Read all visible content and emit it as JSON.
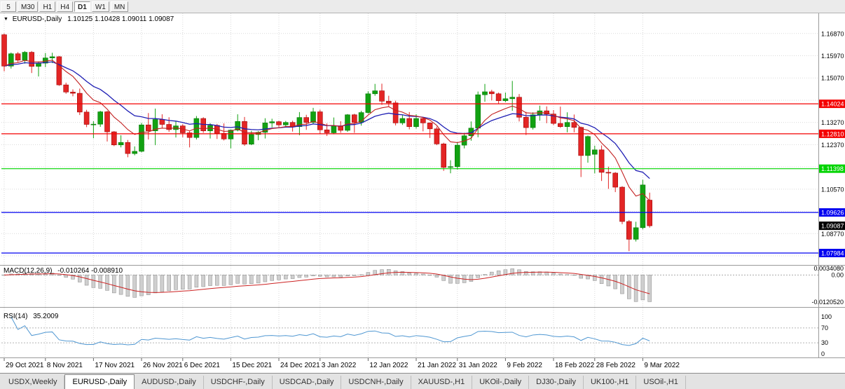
{
  "header": {
    "symbol": "EURUSD-,Daily",
    "ohlc": "1.10125 1.10428 1.09011 1.09087"
  },
  "toolbar": {
    "buttons": [
      {
        "label": "5",
        "active": false
      },
      {
        "label": "M30",
        "active": false
      },
      {
        "label": "H1",
        "active": false
      },
      {
        "label": "H4",
        "active": false
      },
      {
        "label": "D1",
        "active": true
      },
      {
        "label": "W1",
        "active": false
      },
      {
        "label": "MN",
        "active": false
      }
    ]
  },
  "tabs": {
    "items": [
      {
        "label": "USDX,Weekly",
        "active": false
      },
      {
        "label": "EURUSD-,Daily",
        "active": true
      },
      {
        "label": "AUDUSD-,Daily",
        "active": false
      },
      {
        "label": "USDCHF-,Daily",
        "active": false
      },
      {
        "label": "USDCAD-,Daily",
        "active": false
      },
      {
        "label": "USDCNH-,Daily",
        "active": false
      },
      {
        "label": "XAUUSD-,H1",
        "active": false
      },
      {
        "label": "UKOil-,Daily",
        "active": false
      },
      {
        "label": "DJ30-,Daily",
        "active": false
      },
      {
        "label": "UK100-,H1",
        "active": false
      },
      {
        "label": "USOil-,H1",
        "active": false
      }
    ]
  },
  "indicators": {
    "macd": {
      "label": "MACD(12,26,9)",
      "value_text": "-0.010264 -0.008910",
      "fast": 12,
      "slow": 26,
      "signal_period": 9,
      "axis": {
        "top": "0.0034080",
        "zero": "0.00",
        "bottom": "-0.0120520"
      },
      "scale": {
        "max": 0.00341,
        "min": -0.01206
      }
    },
    "rsi": {
      "label": "RSI(14)",
      "value_text": "35.2009",
      "period": 14,
      "axis_labels": [
        "100",
        "70",
        "30",
        "0"
      ],
      "dotted_levels": [
        70,
        30
      ]
    }
  },
  "chart_data": {
    "type": "candlestick",
    "symbol": "EURUSD-",
    "timeframe": "Daily",
    "price_range": {
      "top": 1.1763,
      "bottom": 1.0753
    },
    "grid_prices": [
      1.1687,
      1.1597,
      1.1507,
      1.1417,
      1.1327,
      1.1237,
      1.1147,
      1.1057,
      1.0967,
      1.0877,
      1.0787
    ],
    "axis_labels": [
      {
        "text": "1.16870",
        "price": 1.1687
      },
      {
        "text": "1.15970",
        "price": 1.1597
      },
      {
        "text": "1.15070",
        "price": 1.1507
      },
      {
        "text": "1.13270",
        "price": 1.1327
      },
      {
        "text": "1.12370",
        "price": 1.1237
      },
      {
        "text": "1.10570",
        "price": 1.1057
      },
      {
        "text": "1.08770",
        "price": 1.0877
      }
    ],
    "hlines": [
      {
        "price": 1.14024,
        "label": "1.14024",
        "color": "#f40000",
        "text_color": "#ffffff"
      },
      {
        "price": 1.1281,
        "label": "1.12810",
        "color": "#f40000",
        "text_color": "#ffffff"
      },
      {
        "price": 1.11398,
        "label": "1.11398",
        "color": "#00d400",
        "text_color": "#ffffff"
      },
      {
        "price": 1.09626,
        "label": "1.09626",
        "color": "#0202f0",
        "text_color": "#ffffff"
      },
      {
        "price": 1.07984,
        "label": "1.07984",
        "color": "#0202f0",
        "text_color": "#ffffff"
      }
    ],
    "current_price": {
      "price": 1.09087,
      "label": "1.09087",
      "bg": "#000000",
      "text_color": "#ffffff"
    },
    "x_ticks": [
      {
        "label": "29 Oct 2021",
        "i": 0
      },
      {
        "label": "8 Nov 2021",
        "i": 6
      },
      {
        "label": "17 Nov 2021",
        "i": 13
      },
      {
        "label": "26 Nov 2021",
        "i": 20
      },
      {
        "label": "6 Dec 2021",
        "i": 26
      },
      {
        "label": "15 Dec 2021",
        "i": 33
      },
      {
        "label": "24 Dec 2021",
        "i": 40
      },
      {
        "label": "3 Jan 2022",
        "i": 46
      },
      {
        "label": "12 Jan 2022",
        "i": 53
      },
      {
        "label": "21 Jan 2022",
        "i": 60
      },
      {
        "label": "31 Jan 2022",
        "i": 66
      },
      {
        "label": "9 Feb 2022",
        "i": 73
      },
      {
        "label": "18 Feb 2022",
        "i": 80
      },
      {
        "label": "28 Feb 2022",
        "i": 86
      },
      {
        "label": "9 Mar 2022",
        "i": 93
      }
    ],
    "candles": [
      [
        1.1682,
        1.1687,
        1.1534,
        1.1555
      ],
      [
        1.1555,
        1.161,
        1.1545,
        1.1605
      ],
      [
        1.1605,
        1.1612,
        1.1571,
        1.1579
      ],
      [
        1.1579,
        1.1616,
        1.1565,
        1.1611
      ],
      [
        1.1611,
        1.1616,
        1.1527,
        1.1554
      ],
      [
        1.1554,
        1.1574,
        1.1513,
        1.1567
      ],
      [
        1.1567,
        1.1608,
        1.1551,
        1.1588
      ],
      [
        1.1588,
        1.1609,
        1.1567,
        1.1593
      ],
      [
        1.1593,
        1.1596,
        1.1475,
        1.1479
      ],
      [
        1.1479,
        1.1488,
        1.1443,
        1.145
      ],
      [
        1.145,
        1.1461,
        1.1433,
        1.1445
      ],
      [
        1.1445,
        1.1464,
        1.1357,
        1.1369
      ],
      [
        1.1369,
        1.1378,
        1.1308,
        1.1319
      ],
      [
        1.1319,
        1.1332,
        1.1263,
        1.132
      ],
      [
        1.132,
        1.1374,
        1.1309,
        1.137
      ],
      [
        1.137,
        1.1374,
        1.125,
        1.1289
      ],
      [
        1.1289,
        1.1292,
        1.1231,
        1.1236
      ],
      [
        1.1236,
        1.1275,
        1.1226,
        1.1246
      ],
      [
        1.1246,
        1.1256,
        1.1186,
        1.1201
      ],
      [
        1.1201,
        1.123,
        1.1194,
        1.121
      ],
      [
        1.121,
        1.1325,
        1.1206,
        1.1317
      ],
      [
        1.1317,
        1.1365,
        1.1258,
        1.1293
      ],
      [
        1.1293,
        1.1383,
        1.1235,
        1.1339
      ],
      [
        1.1339,
        1.136,
        1.1302,
        1.1319
      ],
      [
        1.1319,
        1.1348,
        1.1289,
        1.1298
      ],
      [
        1.1298,
        1.1334,
        1.1266,
        1.1313
      ],
      [
        1.1313,
        1.132,
        1.1267,
        1.1285
      ],
      [
        1.1285,
        1.1292,
        1.1226,
        1.1266
      ],
      [
        1.1266,
        1.1353,
        1.1258,
        1.1343
      ],
      [
        1.1343,
        1.1348,
        1.1285,
        1.1293
      ],
      [
        1.1293,
        1.1324,
        1.1262,
        1.1315
      ],
      [
        1.1315,
        1.1321,
        1.126,
        1.1283
      ],
      [
        1.1283,
        1.1323,
        1.1254,
        1.126
      ],
      [
        1.126,
        1.1298,
        1.1222,
        1.1296
      ],
      [
        1.1296,
        1.136,
        1.1291,
        1.1331
      ],
      [
        1.1331,
        1.1349,
        1.1232,
        1.1239
      ],
      [
        1.1239,
        1.1293,
        1.1235,
        1.1278
      ],
      [
        1.1278,
        1.1292,
        1.1255,
        1.1287
      ],
      [
        1.1287,
        1.1344,
        1.1262,
        1.1325
      ],
      [
        1.1325,
        1.1342,
        1.1307,
        1.133
      ],
      [
        1.133,
        1.1334,
        1.1308,
        1.1317
      ],
      [
        1.1317,
        1.1333,
        1.1306,
        1.1327
      ],
      [
        1.1327,
        1.1334,
        1.129,
        1.131
      ],
      [
        1.131,
        1.1369,
        1.1275,
        1.1347
      ],
      [
        1.1347,
        1.1358,
        1.1297,
        1.1327
      ],
      [
        1.1327,
        1.1386,
        1.1322,
        1.137
      ],
      [
        1.137,
        1.1379,
        1.1279,
        1.1297
      ],
      [
        1.1297,
        1.1323,
        1.1272,
        1.1285
      ],
      [
        1.1285,
        1.1347,
        1.1279,
        1.1313
      ],
      [
        1.1313,
        1.1332,
        1.1285,
        1.1295
      ],
      [
        1.1295,
        1.1361,
        1.1289,
        1.1358
      ],
      [
        1.1358,
        1.1362,
        1.1285,
        1.1327
      ],
      [
        1.1327,
        1.1374,
        1.1314,
        1.1367
      ],
      [
        1.1367,
        1.1453,
        1.1362,
        1.1443
      ],
      [
        1.1443,
        1.1483,
        1.1435,
        1.1455
      ],
      [
        1.1455,
        1.1484,
        1.1398,
        1.1413
      ],
      [
        1.1413,
        1.1435,
        1.1392,
        1.1406
      ],
      [
        1.1406,
        1.1415,
        1.1315,
        1.1325
      ],
      [
        1.1325,
        1.1357,
        1.1317,
        1.1343
      ],
      [
        1.1343,
        1.1369,
        1.1299,
        1.131
      ],
      [
        1.131,
        1.136,
        1.1302,
        1.1343
      ],
      [
        1.1343,
        1.1348,
        1.1291,
        1.1325
      ],
      [
        1.1325,
        1.1327,
        1.1264,
        1.1301
      ],
      [
        1.1301,
        1.131,
        1.1235,
        1.124
      ],
      [
        1.124,
        1.1245,
        1.1131,
        1.1145
      ],
      [
        1.1145,
        1.1174,
        1.1121,
        1.1148
      ],
      [
        1.1148,
        1.1248,
        1.1136,
        1.1235
      ],
      [
        1.1235,
        1.1285,
        1.1222,
        1.1273
      ],
      [
        1.1273,
        1.1331,
        1.1253,
        1.1304
      ],
      [
        1.1304,
        1.1452,
        1.1267,
        1.1439
      ],
      [
        1.1439,
        1.1483,
        1.1411,
        1.1451
      ],
      [
        1.1451,
        1.1459,
        1.1416,
        1.1443
      ],
      [
        1.1443,
        1.1448,
        1.1402,
        1.1415
      ],
      [
        1.1415,
        1.1448,
        1.1409,
        1.1423
      ],
      [
        1.1423,
        1.1495,
        1.1374,
        1.1429
      ],
      [
        1.1429,
        1.1442,
        1.1331,
        1.1348
      ],
      [
        1.1348,
        1.137,
        1.1276,
        1.1306
      ],
      [
        1.1306,
        1.1368,
        1.1298,
        1.1358
      ],
      [
        1.1358,
        1.1395,
        1.1334,
        1.1374
      ],
      [
        1.1374,
        1.1392,
        1.1324,
        1.1361
      ],
      [
        1.1361,
        1.1377,
        1.1316,
        1.1323
      ],
      [
        1.1323,
        1.1391,
        1.1305,
        1.131
      ],
      [
        1.131,
        1.1368,
        1.1287,
        1.1327
      ],
      [
        1.1327,
        1.1359,
        1.1287,
        1.1307
      ],
      [
        1.1307,
        1.131,
        1.1106,
        1.1193
      ],
      [
        1.1193,
        1.1274,
        1.1164,
        1.127
      ],
      [
        1.1198,
        1.1233,
        1.1121,
        1.1216
      ],
      [
        1.1216,
        1.1234,
        1.109,
        1.1125
      ],
      [
        1.1125,
        1.1148,
        1.1058,
        1.1122
      ],
      [
        1.1122,
        1.1126,
        1.1045,
        1.1065
      ],
      [
        1.1065,
        1.1069,
        1.0915,
        1.0926
      ],
      [
        1.0926,
        1.0932,
        1.0806,
        1.0854
      ],
      [
        1.0854,
        1.0925,
        1.0845,
        1.0901
      ],
      [
        1.0901,
        1.1095,
        1.0894,
        1.1074
      ],
      [
        1.10125,
        1.10428,
        1.09011,
        1.09087
      ]
    ]
  },
  "colors": {
    "up": "#12a112",
    "up_border": "#067a06",
    "down": "#e32525",
    "down_border": "#a00808",
    "ma_slow": "#1f1fb4",
    "ma_fast": "#c22020",
    "macd_hist": "#cfcfcf",
    "macd_hist_border": "#8a8a8a",
    "macd_signal": "#cc2222",
    "rsi_line": "#4f97d2",
    "grid": "#d9d9d9",
    "separator": "#9a9a9a",
    "axis_text": "#000000"
  }
}
